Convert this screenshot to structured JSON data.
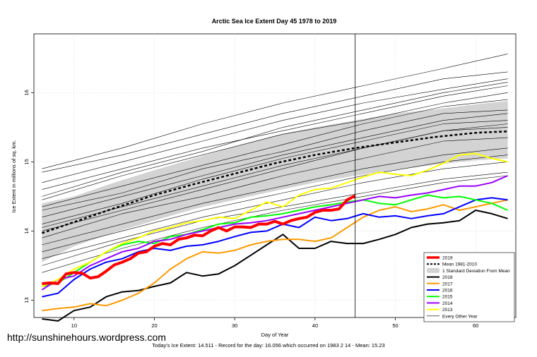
{
  "chart_data": {
    "type": "line",
    "title": "Arctic Sea Ice Extent Day 45 1978 to 2019",
    "xlabel": "Day of Year",
    "ylabel": "Ice Extent in millions of sq. km.",
    "xlim": [
      5,
      65
    ],
    "ylim": [
      12.75,
      16.85
    ],
    "xticks": [
      10,
      20,
      30,
      40,
      50,
      60
    ],
    "yticks": [
      13,
      14,
      15,
      16
    ],
    "current_day_marker": 45,
    "legend_position": "bottom-right",
    "legend": [
      "2019",
      "Mean 1981-2010",
      "1 Standard Deviation From Mean",
      "2018",
      "2017",
      "2016",
      "2015",
      "2014",
      "2013",
      "Every Other Year"
    ],
    "mean": {
      "name": "Mean 1981-2010",
      "color": "#000000",
      "x": [
        6,
        10,
        15,
        20,
        25,
        30,
        35,
        40,
        45,
        50,
        55,
        60,
        64
      ],
      "y": [
        13.97,
        14.13,
        14.33,
        14.52,
        14.68,
        14.83,
        14.98,
        15.1,
        15.2,
        15.28,
        15.36,
        15.42,
        15.44
      ]
    },
    "std_band": {
      "name": "1 Standard Deviation From Mean",
      "color": "#d3d3d3",
      "x": [
        6,
        10,
        15,
        20,
        25,
        30,
        35,
        40,
        45,
        50,
        55,
        60,
        64
      ],
      "upper": [
        14.4,
        14.5,
        14.7,
        14.88,
        15.05,
        15.22,
        15.38,
        15.5,
        15.6,
        15.7,
        15.76,
        15.83,
        15.88
      ],
      "lower": [
        13.55,
        13.78,
        13.98,
        14.15,
        14.32,
        14.45,
        14.58,
        14.7,
        14.8,
        14.88,
        14.96,
        15.02,
        15.05
      ]
    },
    "series": [
      {
        "name": "2019",
        "color": "#ff0000",
        "width": 4,
        "x": [
          6,
          7,
          8,
          9,
          10,
          11,
          12,
          13,
          14,
          15,
          16,
          17,
          18,
          19,
          20,
          21,
          22,
          23,
          24,
          25,
          26,
          27,
          28,
          29,
          30,
          31,
          32,
          33,
          34,
          35,
          36,
          37,
          38,
          39,
          40,
          41,
          42,
          43,
          44,
          45
        ],
        "y": [
          13.24,
          13.25,
          13.24,
          13.38,
          13.4,
          13.39,
          13.32,
          13.34,
          13.42,
          13.51,
          13.55,
          13.6,
          13.68,
          13.7,
          13.78,
          13.82,
          13.8,
          13.88,
          13.9,
          13.94,
          13.93,
          14.0,
          14.05,
          14.0,
          14.06,
          14.06,
          14.05,
          14.1,
          14.1,
          14.14,
          14.1,
          14.15,
          14.18,
          14.2,
          14.27,
          14.3,
          14.3,
          14.32,
          14.45,
          14.51
        ]
      },
      {
        "name": "2018",
        "color": "#000000",
        "width": 2,
        "x": [
          6,
          8,
          10,
          12,
          14,
          16,
          18,
          20,
          22,
          24,
          26,
          28,
          30,
          32,
          34,
          36,
          38,
          40,
          42,
          44,
          46,
          48,
          50,
          52,
          54,
          56,
          58,
          60,
          62,
          64
        ],
        "y": [
          12.73,
          12.7,
          12.85,
          12.9,
          13.05,
          13.12,
          13.14,
          13.2,
          13.25,
          13.4,
          13.35,
          13.38,
          13.5,
          13.65,
          13.8,
          13.95,
          13.75,
          13.75,
          13.85,
          13.82,
          13.82,
          13.88,
          13.95,
          14.05,
          14.1,
          14.12,
          14.15,
          14.3,
          14.25,
          14.18
        ]
      },
      {
        "name": "2017",
        "color": "#ff9900",
        "width": 2,
        "x": [
          6,
          8,
          10,
          12,
          14,
          16,
          18,
          20,
          22,
          24,
          26,
          28,
          30,
          32,
          34,
          36,
          38,
          40,
          42,
          44,
          46,
          48,
          50,
          52,
          54,
          56,
          58,
          60,
          62,
          64
        ],
        "y": [
          12.85,
          12.88,
          12.9,
          12.95,
          12.92,
          13.0,
          13.1,
          13.25,
          13.45,
          13.6,
          13.7,
          13.68,
          13.72,
          13.8,
          13.85,
          13.88,
          13.88,
          13.85,
          13.9,
          14.05,
          14.2,
          14.3,
          14.35,
          14.28,
          14.32,
          14.38,
          14.3,
          14.35,
          14.4,
          14.45
        ]
      },
      {
        "name": "2016",
        "color": "#0000ff",
        "width": 2,
        "x": [
          6,
          8,
          10,
          12,
          14,
          16,
          18,
          20,
          22,
          24,
          26,
          28,
          30,
          32,
          34,
          36,
          38,
          40,
          42,
          44,
          46,
          48,
          50,
          52,
          54,
          56,
          58,
          60,
          62,
          64
        ],
        "y": [
          13.05,
          13.1,
          13.3,
          13.45,
          13.55,
          13.6,
          13.7,
          13.75,
          13.72,
          13.78,
          13.8,
          13.85,
          13.92,
          13.98,
          14.0,
          14.1,
          14.05,
          14.2,
          14.15,
          14.18,
          14.25,
          14.2,
          14.22,
          14.18,
          14.22,
          14.25,
          14.35,
          14.45,
          14.48,
          14.45
        ]
      },
      {
        "name": "2015",
        "color": "#00ff00",
        "width": 2,
        "x": [
          6,
          8,
          10,
          12,
          14,
          16,
          18,
          20,
          22,
          24,
          26,
          28,
          30,
          32,
          34,
          36,
          38,
          40,
          42,
          44,
          46,
          48,
          50,
          52,
          54,
          56,
          58,
          60,
          62,
          64
        ],
        "y": [
          13.2,
          13.25,
          13.4,
          13.55,
          13.7,
          13.8,
          13.85,
          13.82,
          13.92,
          13.95,
          14.02,
          14.1,
          14.12,
          14.2,
          14.22,
          14.25,
          14.3,
          14.35,
          14.38,
          14.42,
          14.45,
          14.4,
          14.38,
          14.45,
          14.52,
          14.48,
          14.5,
          14.45,
          14.4,
          14.3
        ]
      },
      {
        "name": "2014",
        "color": "#9900ff",
        "width": 2,
        "x": [
          6,
          8,
          10,
          12,
          14,
          16,
          18,
          20,
          22,
          24,
          26,
          28,
          30,
          32,
          34,
          36,
          38,
          40,
          42,
          44,
          46,
          48,
          50,
          52,
          54,
          56,
          58,
          60,
          62,
          64
        ],
        "y": [
          13.15,
          13.3,
          13.35,
          13.5,
          13.6,
          13.7,
          13.75,
          13.85,
          13.88,
          13.95,
          14.0,
          14.05,
          14.1,
          14.12,
          14.15,
          14.2,
          14.25,
          14.3,
          14.35,
          14.4,
          14.45,
          14.5,
          14.48,
          14.52,
          14.55,
          14.6,
          14.65,
          14.65,
          14.7,
          14.8
        ]
      },
      {
        "name": "2013",
        "color": "#ffff00",
        "width": 2,
        "x": [
          6,
          8,
          10,
          12,
          14,
          16,
          18,
          20,
          22,
          24,
          26,
          28,
          30,
          32,
          34,
          36,
          38,
          40,
          42,
          44,
          46,
          48,
          50,
          52,
          54,
          56,
          58,
          60,
          62,
          64
        ],
        "y": [
          13.2,
          13.3,
          13.45,
          13.55,
          13.7,
          13.82,
          13.9,
          14.0,
          14.05,
          14.12,
          14.15,
          14.2,
          14.18,
          14.3,
          14.42,
          14.35,
          14.52,
          14.6,
          14.62,
          14.7,
          14.78,
          14.85,
          14.82,
          14.8,
          14.88,
          14.98,
          15.1,
          15.12,
          15.05,
          15.0
        ]
      }
    ],
    "other_years": [
      {
        "name": "Every Other Year",
        "color": "#000000",
        "width": 0.6,
        "x": [
          6,
          16,
          26,
          36,
          46,
          56,
          64
        ],
        "y": [
          14.0,
          14.3,
          14.6,
          14.9,
          15.2,
          15.45,
          15.5
        ]
      },
      {
        "name": "Every Other Year",
        "color": "#000000",
        "width": 0.6,
        "x": [
          6,
          16,
          26,
          36,
          46,
          56,
          64
        ],
        "y": [
          14.35,
          14.65,
          14.95,
          15.25,
          15.55,
          15.8,
          15.9
        ]
      },
      {
        "name": "Every Other Year",
        "color": "#000000",
        "width": 0.6,
        "x": [
          6,
          16,
          26,
          36,
          46,
          56,
          64
        ],
        "y": [
          14.85,
          15.1,
          15.4,
          15.7,
          15.95,
          16.2,
          16.3
        ]
      },
      {
        "name": "Every Other Year",
        "color": "#000000",
        "width": 0.6,
        "x": [
          6,
          16,
          26,
          36,
          46,
          56,
          64
        ],
        "y": [
          14.9,
          15.2,
          15.55,
          15.85,
          16.1,
          16.35,
          16.56
        ]
      },
      {
        "name": "Every Other Year",
        "color": "#000000",
        "width": 0.6,
        "x": [
          6,
          16,
          26,
          36,
          46,
          56,
          64
        ],
        "y": [
          14.6,
          14.9,
          15.2,
          15.45,
          15.7,
          15.95,
          16.1
        ]
      },
      {
        "name": "Every Other Year",
        "color": "#000000",
        "width": 0.6,
        "x": [
          6,
          16,
          26,
          36,
          46,
          56,
          64
        ],
        "y": [
          14.2,
          14.5,
          14.8,
          15.1,
          15.35,
          15.6,
          15.7
        ]
      },
      {
        "name": "Every Other Year",
        "color": "#000000",
        "width": 0.6,
        "x": [
          6,
          16,
          26,
          36,
          46,
          56,
          64
        ],
        "y": [
          13.8,
          14.1,
          14.4,
          14.65,
          14.9,
          15.1,
          15.2
        ]
      },
      {
        "name": "Every Other Year",
        "color": "#000000",
        "width": 0.6,
        "x": [
          6,
          16,
          26,
          36,
          46,
          56,
          64
        ],
        "y": [
          13.6,
          13.9,
          14.2,
          14.45,
          14.7,
          14.9,
          15.0
        ]
      },
      {
        "name": "Every Other Year",
        "color": "#000000",
        "width": 0.6,
        "x": [
          6,
          16,
          26,
          36,
          46,
          56,
          64
        ],
        "y": [
          14.1,
          14.4,
          14.75,
          15.05,
          15.3,
          15.55,
          15.6
        ]
      },
      {
        "name": "Every Other Year",
        "color": "#000000",
        "width": 0.6,
        "x": [
          6,
          16,
          26,
          36,
          46,
          56,
          64
        ],
        "y": [
          14.45,
          14.8,
          15.1,
          15.4,
          15.6,
          15.85,
          16.0
        ]
      },
      {
        "name": "Every Other Year",
        "color": "#000000",
        "width": 0.6,
        "x": [
          6,
          16,
          26,
          36,
          46,
          56,
          64
        ],
        "y": [
          13.5,
          13.85,
          14.15,
          14.35,
          14.55,
          14.75,
          14.85
        ]
      },
      {
        "name": "Every Other Year",
        "color": "#000000",
        "width": 0.6,
        "x": [
          6,
          16,
          26,
          36,
          46,
          56,
          64
        ],
        "y": [
          13.9,
          14.25,
          14.5,
          14.8,
          15.05,
          15.3,
          15.35
        ]
      },
      {
        "name": "Every Other Year",
        "color": "#000000",
        "width": 0.6,
        "x": [
          6,
          16,
          26,
          36,
          46,
          56,
          64
        ],
        "y": [
          14.3,
          14.55,
          14.9,
          15.15,
          15.45,
          15.7,
          15.75
        ]
      },
      {
        "name": "Every Other Year",
        "color": "#000000",
        "width": 0.6,
        "x": [
          6,
          16,
          26,
          36,
          46,
          56,
          64
        ],
        "y": [
          14.7,
          15.0,
          15.3,
          15.6,
          15.85,
          16.05,
          16.2
        ]
      },
      {
        "name": "Every Other Year",
        "color": "#000000",
        "width": 0.6,
        "x": [
          6,
          16,
          26,
          36,
          46,
          56,
          64
        ],
        "y": [
          13.7,
          14.0,
          14.3,
          14.55,
          14.8,
          15.0,
          15.1
        ]
      },
      {
        "name": "Every Other Year",
        "color": "#000000",
        "width": 0.6,
        "x": [
          6,
          16,
          26,
          36,
          46,
          56,
          64
        ],
        "y": [
          14.05,
          14.35,
          14.65,
          14.95,
          15.2,
          15.45,
          15.55
        ]
      },
      {
        "name": "Every Other Year",
        "color": "#000000",
        "width": 0.6,
        "x": [
          6,
          16,
          26,
          36,
          46,
          56,
          64
        ],
        "y": [
          13.4,
          13.75,
          14.05,
          14.3,
          14.5,
          14.7,
          14.8
        ]
      },
      {
        "name": "Every Other Year",
        "color": "#000000",
        "width": 0.6,
        "x": [
          6,
          16,
          26,
          36,
          46,
          56,
          64
        ],
        "y": [
          14.5,
          14.85,
          15.15,
          15.5,
          15.75,
          16.0,
          16.15
        ]
      }
    ]
  },
  "watermark": "http://sunshinehours.wordpress.com",
  "footnote": "Today's Ice Extent: 14.511  - Record for the day: 16.056 which occurred on 1983 2 14  - Mean: 15.23"
}
